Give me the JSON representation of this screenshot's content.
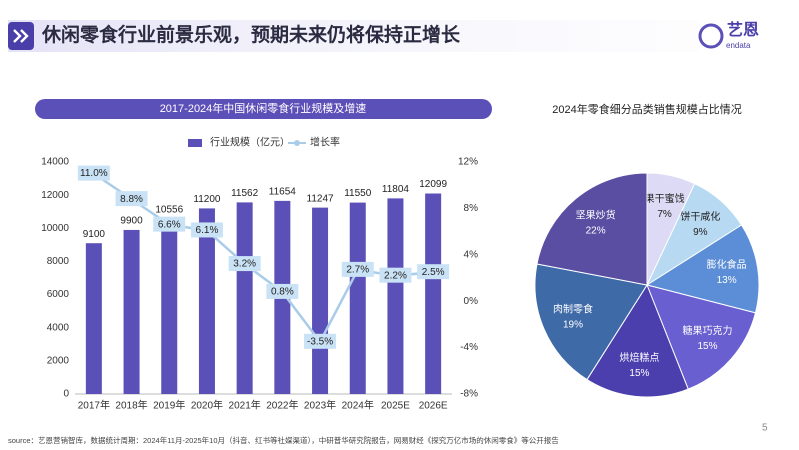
{
  "header": {
    "title": "休闲零食行业前景乐观，预期未来仍将保持正增长",
    "logo": "艺恩",
    "logo_sub": "endata"
  },
  "chart_data": [
    {
      "type": "bar",
      "title": "2017-2024年中国休闲零食行业规模及增速",
      "categories": [
        "2017年",
        "2018年",
        "2019年",
        "2020年",
        "2021年",
        "2022年",
        "2023年",
        "2024年",
        "2025E",
        "2026E"
      ],
      "series": [
        {
          "name": "行业规模（亿元）",
          "color": "#5b4fb8",
          "values": [
            9100,
            9900,
            10556,
            11200,
            11562,
            11654,
            11247,
            11550,
            11804,
            12099
          ]
        },
        {
          "name": "增长率",
          "type": "line",
          "axis": "y2",
          "color": "#a9cce8",
          "values": [
            11.0,
            8.8,
            6.6,
            6.1,
            3.2,
            0.8,
            -3.5,
            2.7,
            2.2,
            2.5
          ],
          "value_labels": [
            "11.0%",
            "8.8%",
            "6.6%",
            "6.1%",
            "3.2%",
            "0.8%",
            "-3.5%",
            "2.7%",
            "2.2%",
            "2.5%"
          ]
        }
      ],
      "ylim": [
        0,
        14000
      ],
      "yticks": [
        0,
        2000,
        4000,
        6000,
        8000,
        10000,
        12000,
        14000
      ],
      "y2lim": [
        -8,
        12
      ],
      "y2ticks": [
        {
          "value": -8,
          "label": "-8%"
        },
        {
          "value": -4,
          "label": "-4%"
        },
        {
          "value": 0,
          "label": "0%"
        },
        {
          "value": 4,
          "label": "4%"
        },
        {
          "value": 8,
          "label": "8%"
        },
        {
          "value": 12,
          "label": "12%"
        }
      ]
    },
    {
      "type": "pie",
      "title": "2024年零食细分品类销售规模占比情况",
      "categories": [
        "果干蜜饯",
        "饼干咸化",
        "膨化食品",
        "糖果巧克力",
        "烘焙糕点",
        "肉制零食",
        "坚果炒货"
      ],
      "values": [
        7,
        9,
        13,
        15,
        15,
        19,
        22
      ],
      "value_labels": [
        "7%",
        "9%",
        "13%",
        "15%",
        "15%",
        "19%",
        "22%"
      ],
      "colors": [
        "#dcdaf4",
        "#b8d9f2",
        "#5b8ed6",
        "#6a5fd0",
        "#4b3fae",
        "#3f6aa8",
        "#5a4ea3"
      ]
    }
  ],
  "footer": {
    "source": "source：艺恩营销智库，数据统计周期：2024年11月-2025年10月（抖音、红书等社媒渠道），中研普华研究院报告，网易财经《探究万亿市场的休闲零食》等公开报告",
    "page": "5"
  }
}
